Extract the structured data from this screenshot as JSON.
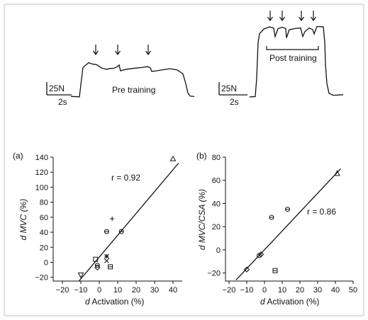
{
  "traces": {
    "pre": {
      "label": "Pre training",
      "scale_force": "25N",
      "scale_time": "2s",
      "arrow_count": 3
    },
    "post": {
      "label": "Post training",
      "scale_force": "25N",
      "scale_time": "2s",
      "arrow_count": 4
    }
  },
  "chart_data": [
    {
      "type": "scatter",
      "panel_label": "(a)",
      "xlabel_prefix": "d",
      "xlabel_main": " Activation (%)",
      "ylabel_prefix": "d",
      "ylabel_main": " MVC (%)",
      "xlim": [
        -25,
        45
      ],
      "ylim": [
        -25,
        140
      ],
      "xticks": [
        -20,
        -10,
        0,
        10,
        20,
        30,
        40
      ],
      "yticks": [
        -20,
        0,
        20,
        40,
        60,
        80,
        100,
        120,
        140
      ],
      "annotation": "r = 0.92",
      "grid": false,
      "regression": {
        "x": [
          -11,
          43
        ],
        "y": [
          -25,
          132
        ]
      },
      "points": [
        {
          "x": 40,
          "y": 138,
          "marker": "triangle-up"
        },
        {
          "x": 7,
          "y": 58,
          "marker": "plus"
        },
        {
          "x": 4,
          "y": 41,
          "marker": "circle-dash"
        },
        {
          "x": 12,
          "y": 41,
          "marker": "circle-dash"
        },
        {
          "x": -2,
          "y": 4,
          "marker": "square"
        },
        {
          "x": -1,
          "y": -4,
          "marker": "circle-dash"
        },
        {
          "x": -1,
          "y": -7,
          "marker": "diamond"
        },
        {
          "x": 4,
          "y": 8,
          "marker": "asterisk"
        },
        {
          "x": 4,
          "y": 2,
          "marker": "x"
        },
        {
          "x": 6,
          "y": -6,
          "marker": "square-dash"
        },
        {
          "x": -10,
          "y": -17,
          "marker": "triangle-down"
        }
      ]
    },
    {
      "type": "scatter",
      "panel_label": "(b)",
      "xlabel_prefix": "d",
      "xlabel_main": " Activation (%)",
      "ylabel_prefix": "d",
      "ylabel_main": " MVC/CSA (%)",
      "xlim": [
        -22,
        50
      ],
      "ylim": [
        -27,
        80
      ],
      "xticks": [
        -20,
        -10,
        0,
        10,
        20,
        30,
        40,
        50
      ],
      "yticks": [
        -20,
        0,
        20,
        40,
        60,
        80
      ],
      "annotation": "r = 0.86",
      "grid": false,
      "regression": {
        "x": [
          -16,
          43
        ],
        "y": [
          -26,
          70
        ]
      },
      "points": [
        {
          "x": 41,
          "y": 66,
          "marker": "triangle-up"
        },
        {
          "x": 13,
          "y": 35,
          "marker": "circle-dash"
        },
        {
          "x": 4,
          "y": 28,
          "marker": "circle-dash"
        },
        {
          "x": -3,
          "y": -5,
          "marker": "circle"
        },
        {
          "x": -2,
          "y": -4,
          "marker": "diamond"
        },
        {
          "x": -10,
          "y": -17,
          "marker": "diamond"
        },
        {
          "x": 6,
          "y": -18,
          "marker": "square-dash"
        }
      ]
    }
  ],
  "colors": {
    "ink": "#111111",
    "frame": "#bbbbbb",
    "background": "#ffffff"
  }
}
